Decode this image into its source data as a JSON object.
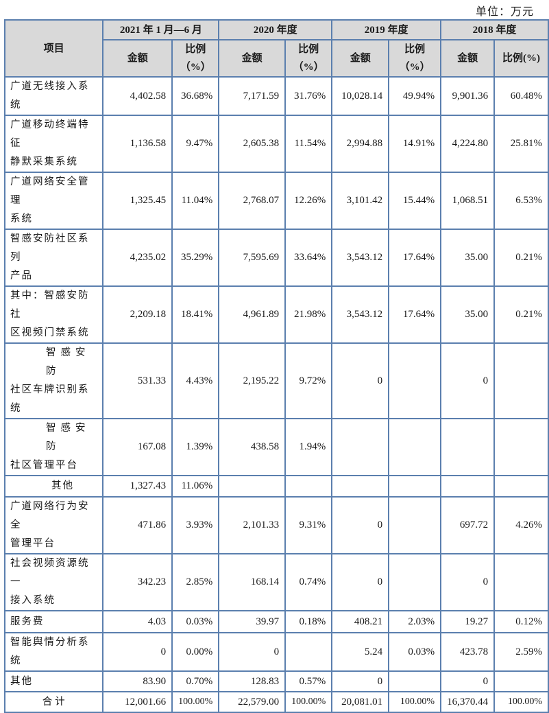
{
  "unit_label": "单位：万元",
  "header": {
    "item_label": "项目",
    "periods": [
      "2021 年 1 月—6 月",
      "2020 年度",
      "2019 年度",
      "2018 年度"
    ],
    "amount_label": "金额",
    "ratio_label_line1": "比例",
    "ratio_label_line2": "（%）",
    "ratio_label_single": "比例(%)"
  },
  "rows": [
    {
      "name_l1": "广道无线接入系统",
      "name_l2": "",
      "v": [
        "4,402.58",
        "36.68%",
        "7,171.59",
        "31.76%",
        "10,028.14",
        "49.94%",
        "9,901.36",
        "60.48%"
      ]
    },
    {
      "name_l1": "广道移动终端特征",
      "name_l2": "静默采集系统",
      "v": [
        "1,136.58",
        "9.47%",
        "2,605.38",
        "11.54%",
        "2,994.88",
        "14.91%",
        "4,224.80",
        "25.81%"
      ]
    },
    {
      "name_l1": "广道网络安全管理",
      "name_l2": "系统",
      "v": [
        "1,325.45",
        "11.04%",
        "2,768.07",
        "12.26%",
        "3,101.42",
        "15.44%",
        "1,068.51",
        "6.53%"
      ]
    },
    {
      "name_l1": "智感安防社区系列",
      "name_l2": "产品",
      "v": [
        "4,235.02",
        "35.29%",
        "7,595.69",
        "33.64%",
        "3,543.12",
        "17.64%",
        "35.00",
        "0.21%"
      ]
    },
    {
      "name_l1": "其中：智感安防社",
      "name_l2": "区视频门禁系统",
      "v": [
        "2,209.18",
        "18.41%",
        "4,961.89",
        "21.98%",
        "3,543.12",
        "17.64%",
        "35.00",
        "0.21%"
      ]
    },
    {
      "name_l1": "智感安防",
      "name_l2": "社区车牌识别系统",
      "v": [
        "531.33",
        "4.43%",
        "2,195.22",
        "9.72%",
        "0",
        "",
        "0",
        ""
      ]
    },
    {
      "name_l1": "智感安防",
      "name_l2": "社区管理平台",
      "v": [
        "167.08",
        "1.39%",
        "438.58",
        "1.94%",
        "",
        "",
        "",
        ""
      ]
    },
    {
      "name_l1": "其他",
      "name_l2": "",
      "v": [
        "1,327.43",
        "11.06%",
        "",
        "",
        "",
        "",
        "",
        ""
      ]
    },
    {
      "name_l1": "广道网络行为安全",
      "name_l2": "管理平台",
      "v": [
        "471.86",
        "3.93%",
        "2,101.33",
        "9.31%",
        "0",
        "",
        "697.72",
        "4.26%"
      ]
    },
    {
      "name_l1": "社会视频资源统一",
      "name_l2": "接入系统",
      "v": [
        "342.23",
        "2.85%",
        "168.14",
        "0.74%",
        "0",
        "",
        "0",
        ""
      ]
    },
    {
      "name_l1": "服务费",
      "name_l2": "",
      "v": [
        "4.03",
        "0.03%",
        "39.97",
        "0.18%",
        "408.21",
        "2.03%",
        "19.27",
        "0.12%"
      ]
    },
    {
      "name_l1": "智能舆情分析系统",
      "name_l2": "",
      "v": [
        "0",
        "0.00%",
        "0",
        "",
        "5.24",
        "0.03%",
        "423.78",
        "2.59%"
      ]
    },
    {
      "name_l1": "其他",
      "name_l2": "",
      "v": [
        "83.90",
        "0.70%",
        "128.83",
        "0.57%",
        "0",
        "",
        "0",
        ""
      ]
    },
    {
      "name_l1": "合计",
      "name_l2": "",
      "v": [
        "12,001.66",
        "100.00%",
        "22,579.00",
        "100.00%",
        "20,081.01",
        "100.00%",
        "16,370.44",
        "100.00%"
      ]
    }
  ],
  "colors": {
    "border": "#5b7fae",
    "header_bg": "#d9d9d9"
  }
}
